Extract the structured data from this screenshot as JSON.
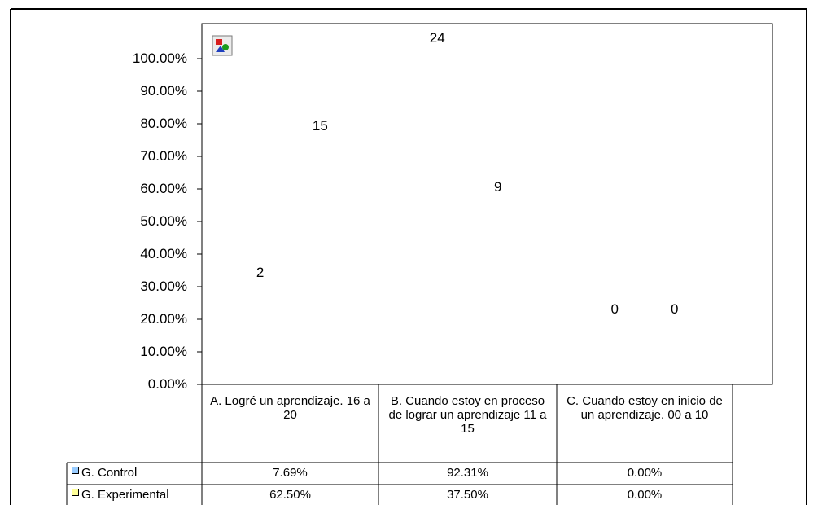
{
  "chart_data": {
    "type": "bar",
    "title": "",
    "xlabel": "",
    "ylabel": "",
    "ylim": [
      0,
      1
    ],
    "y_ticks": [
      "0.00%",
      "10.00%",
      "20.00%",
      "30.00%",
      "40.00%",
      "50.00%",
      "60.00%",
      "70.00%",
      "80.00%",
      "90.00%",
      "100.00%"
    ],
    "categories": [
      "A. Logré un aprendizaje. 16 a 20",
      "B. Cuando estoy en proceso de lograr un aprendizaje 11 a 15",
      "C. Cuando estoy en inicio de un aprendizaje. 00 a 10"
    ],
    "series": [
      {
        "name": "G. Control",
        "color": "#99ccff",
        "values": [
          0.0769,
          0.9231,
          0.0
        ],
        "table_values": [
          "7.69%",
          "92.31%",
          "0.00%"
        ],
        "data_labels": [
          "2",
          "24",
          "0"
        ]
      },
      {
        "name": "G. Experimental",
        "color": "#ffff99",
        "values": [
          0.625,
          0.375,
          0.0
        ],
        "table_values": [
          "62.50%",
          "37.50%",
          "0.00%"
        ],
        "data_labels": [
          "15",
          "9",
          "0"
        ]
      }
    ],
    "grid": false,
    "legend": "data-table-left",
    "broken_image_icon": "broken-image-icon"
  }
}
